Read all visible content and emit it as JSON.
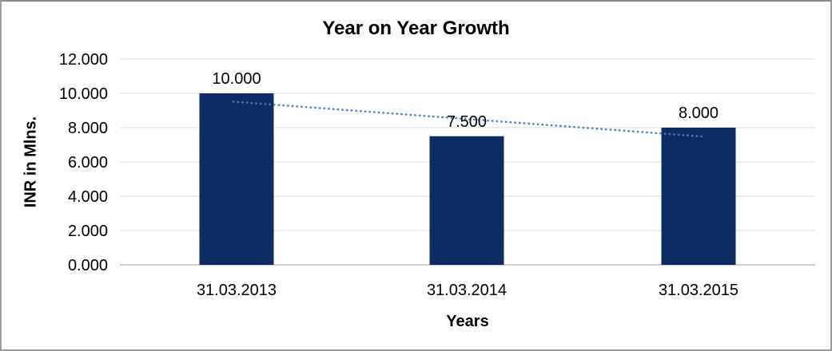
{
  "frame": {
    "background_color": "#ffffff",
    "border_color": "#9b9b9b"
  },
  "chart_data": {
    "type": "bar",
    "title": "Year on Year Growth",
    "categories": [
      "31.03.2013",
      "31.03.2014",
      "31.03.2015"
    ],
    "values": [
      10.0,
      7.5,
      8.0
    ],
    "value_labels": [
      "10.000",
      "7.500",
      "8.000"
    ],
    "xlabel": "Years",
    "ylabel": "INR in Mlns.",
    "ylim": [
      0,
      12
    ],
    "yticks": [
      0,
      2,
      4,
      6,
      8,
      10,
      12
    ],
    "ytick_labels": [
      "0.000",
      "2.000",
      "4.000",
      "6.000",
      "8.000",
      "10.000",
      "12.000"
    ],
    "grid": true,
    "legend_position": "none",
    "bar_color": "#0d2b61",
    "gridline_color": "#d9d9d9",
    "axis_line_color": "#bfbfbf",
    "text_color": "#000000",
    "trendline": {
      "type": "linear",
      "style": "dotted",
      "color": "#4a7fc1",
      "start_value": 9.5,
      "end_value": 7.5
    }
  }
}
